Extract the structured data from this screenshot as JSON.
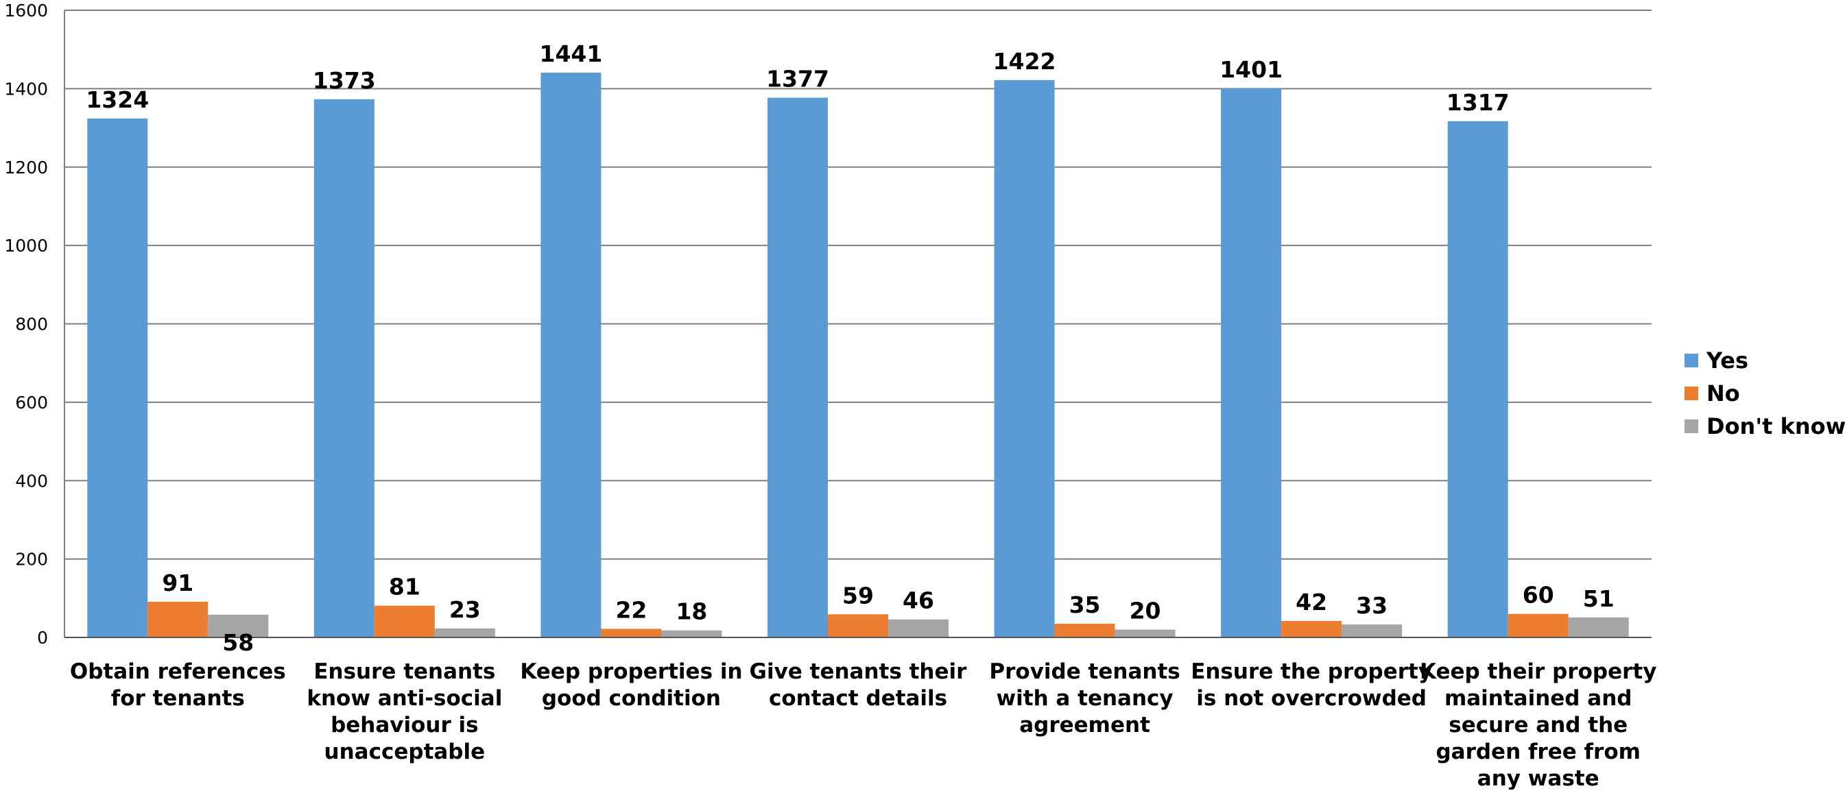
{
  "chart_data": {
    "type": "bar",
    "title": "",
    "xlabel": "",
    "ylabel": "",
    "ylim": [
      0,
      1600
    ],
    "y_ticks": [
      0,
      200,
      400,
      600,
      800,
      1000,
      1200,
      1400,
      1600
    ],
    "grid": true,
    "legend_position": "right",
    "categories": [
      [
        "Obtain references",
        "for tenants"
      ],
      [
        "Ensure tenants",
        "know anti-social",
        "behaviour is",
        "unacceptable"
      ],
      [
        "Keep properties in",
        "good condition"
      ],
      [
        "Give tenants their",
        "contact details"
      ],
      [
        "Provide tenants",
        "with a tenancy",
        "agreement"
      ],
      [
        "Ensure the property",
        "is not overcrowded"
      ],
      [
        "Keep their property",
        "maintained and",
        "secure and the",
        "garden free from",
        "any waste"
      ]
    ],
    "series": [
      {
        "name": "Yes",
        "color": "#5B9BD5",
        "values": [
          1324,
          1373,
          1441,
          1377,
          1422,
          1401,
          1317
        ]
      },
      {
        "name": "No",
        "color": "#ED7D31",
        "values": [
          91,
          81,
          22,
          59,
          35,
          42,
          60
        ]
      },
      {
        "name": "Don't know",
        "color": "#A5A5A5",
        "values": [
          58,
          23,
          18,
          46,
          20,
          33,
          51
        ]
      }
    ]
  }
}
